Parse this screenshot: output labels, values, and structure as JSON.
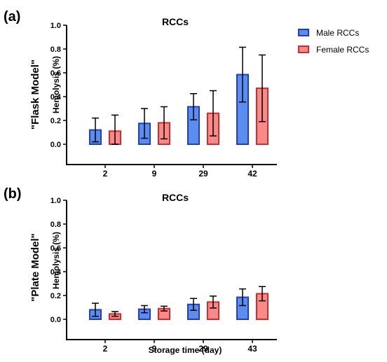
{
  "chart_data": [
    {
      "panel_label": "(a)",
      "side_label": "\"Flask Model\"",
      "type": "bar",
      "title": "RCCs",
      "ylabel": "Hemolysis (%)",
      "xlabel": "",
      "ylim": [
        0,
        1.0
      ],
      "yticks": [
        "0.0",
        "0.2",
        "0.4",
        "0.6",
        "0.8",
        "1.0"
      ],
      "categories": [
        "2",
        "9",
        "29",
        "42"
      ],
      "series": [
        {
          "name": "Male RCCs",
          "values": [
            0.12,
            0.175,
            0.315,
            0.585
          ],
          "errors": [
            0.1,
            0.125,
            0.11,
            0.23
          ]
        },
        {
          "name": "Female RCCs",
          "values": [
            0.11,
            0.18,
            0.26,
            0.47
          ],
          "errors": [
            0.135,
            0.135,
            0.19,
            0.28
          ]
        }
      ],
      "legend": "top-right"
    },
    {
      "panel_label": "(b)",
      "side_label": "\"Plate Model\"",
      "type": "bar",
      "title": "RCCs",
      "ylabel": "Hemolysis (%)",
      "xlabel": "Storage time (day)",
      "ylim": [
        0,
        1.0
      ],
      "yticks": [
        "0.0",
        "0.2",
        "0.4",
        "0.6",
        "0.8",
        "1.0"
      ],
      "categories": [
        "2",
        "9",
        "29",
        "43"
      ],
      "series": [
        {
          "name": "Male RCCs",
          "values": [
            0.08,
            0.085,
            0.125,
            0.185
          ],
          "errors": [
            0.055,
            0.03,
            0.05,
            0.07
          ]
        },
        {
          "name": "Female RCCs",
          "values": [
            0.045,
            0.09,
            0.145,
            0.215
          ],
          "errors": [
            0.02,
            0.02,
            0.05,
            0.06
          ]
        }
      ]
    }
  ],
  "colors": {
    "male_fill": "#5b8def",
    "male_stroke": "#1f3fbf",
    "female_fill": "#f98a8a",
    "female_stroke": "#d42a2a",
    "axis": "#000000"
  }
}
